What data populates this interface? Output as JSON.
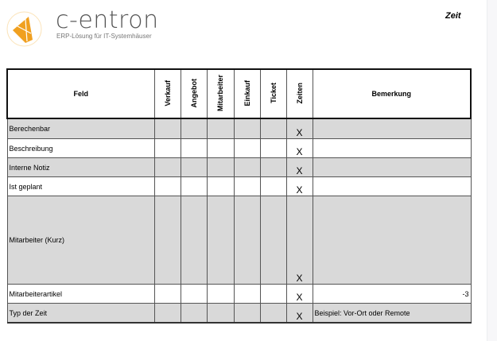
{
  "header": {
    "brand": "c-entron",
    "tagline": "ERP-Lösung für IT-Systemhäuser",
    "title": "Zeit"
  },
  "colors": {
    "logo_orange": "#f0a020",
    "row_gray": "#d9d9d9"
  },
  "table": {
    "columns": [
      "Feld",
      "Verkauf",
      "Angebot",
      "Mitarbeiter",
      "Einkauf",
      "Ticket",
      "Zeiten",
      "Bemerkung"
    ],
    "rows": [
      {
        "feld": "Berechenbar",
        "zeiten": "X",
        "bemerkung": ""
      },
      {
        "feld": "Beschreibung",
        "zeiten": "X",
        "bemerkung": ""
      },
      {
        "feld": "Interne Notiz",
        "zeiten": "X",
        "bemerkung": ""
      },
      {
        "feld": "Ist geplant",
        "zeiten": "X",
        "bemerkung": ""
      },
      {
        "feld": "Mitarbeiter (Kurz)",
        "zeiten": "X",
        "bemerkung": ""
      },
      {
        "feld": "Mitarbeiterartikel",
        "zeiten": "X",
        "bemerkung": "-3"
      },
      {
        "feld": "Typ der Zeit",
        "zeiten": "X",
        "bemerkung": "Beispiel: Vor-Ort oder Remote"
      }
    ]
  }
}
